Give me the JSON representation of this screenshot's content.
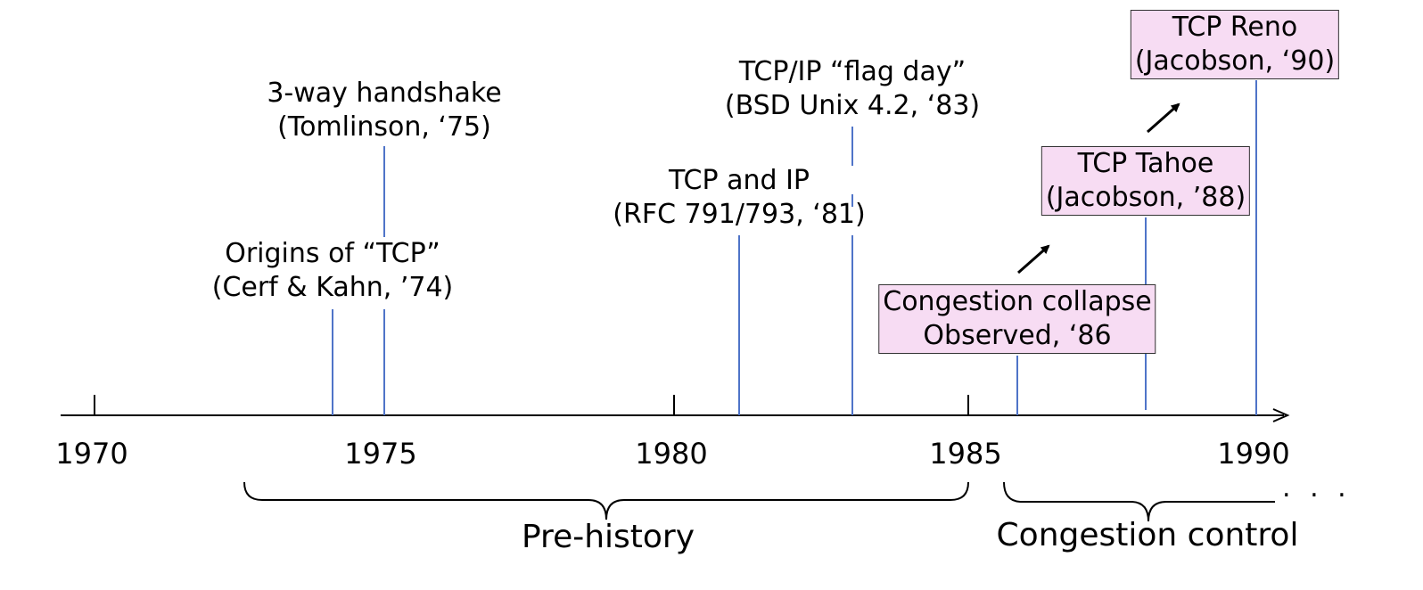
{
  "axis": {
    "years": [
      "1970",
      "1975",
      "1980",
      "1985",
      "1990"
    ],
    "ellipsis": ". . ."
  },
  "events": [
    {
      "id": "origins",
      "year": 1974.1,
      "line1": "Origins of “TCP”",
      "line2": "(Cerf & Kahn, ’74)",
      "highlighted": false
    },
    {
      "id": "handshake",
      "year": 1975.0,
      "line1": "3-way handshake",
      "line2": "(Tomlinson, ‘75)",
      "highlighted": false
    },
    {
      "id": "tcp-ip",
      "year": 1981.2,
      "line1": "TCP and IP",
      "line2": "(RFC 791/793, ‘81)",
      "highlighted": false
    },
    {
      "id": "flag-day",
      "year": 1983.1,
      "line1": "TCP/IP “flag day”",
      "line2": "(BSD Unix 4.2, ‘83)",
      "highlighted": false
    },
    {
      "id": "collapse",
      "year": 1985.9,
      "line1": "Congestion collapse",
      "line2": "Observed, ‘86",
      "highlighted": true
    },
    {
      "id": "tahoe",
      "year": 1988.1,
      "line1": "TCP Tahoe",
      "line2": "(Jacobson, ’88)",
      "highlighted": true
    },
    {
      "id": "reno",
      "year": 1990.0,
      "line1": "TCP Reno",
      "line2": "(Jacobson, ‘90)",
      "highlighted": true
    }
  ],
  "eras": [
    {
      "label": "Pre-history",
      "start": 1972.6,
      "end": 1985.0
    },
    {
      "label": "Congestion control",
      "start": 1985.6,
      "end": 1990.4
    }
  ],
  "colors": {
    "stem": "#4f74c8",
    "box_fill": "#f7dcf3",
    "axis": "#000000"
  }
}
